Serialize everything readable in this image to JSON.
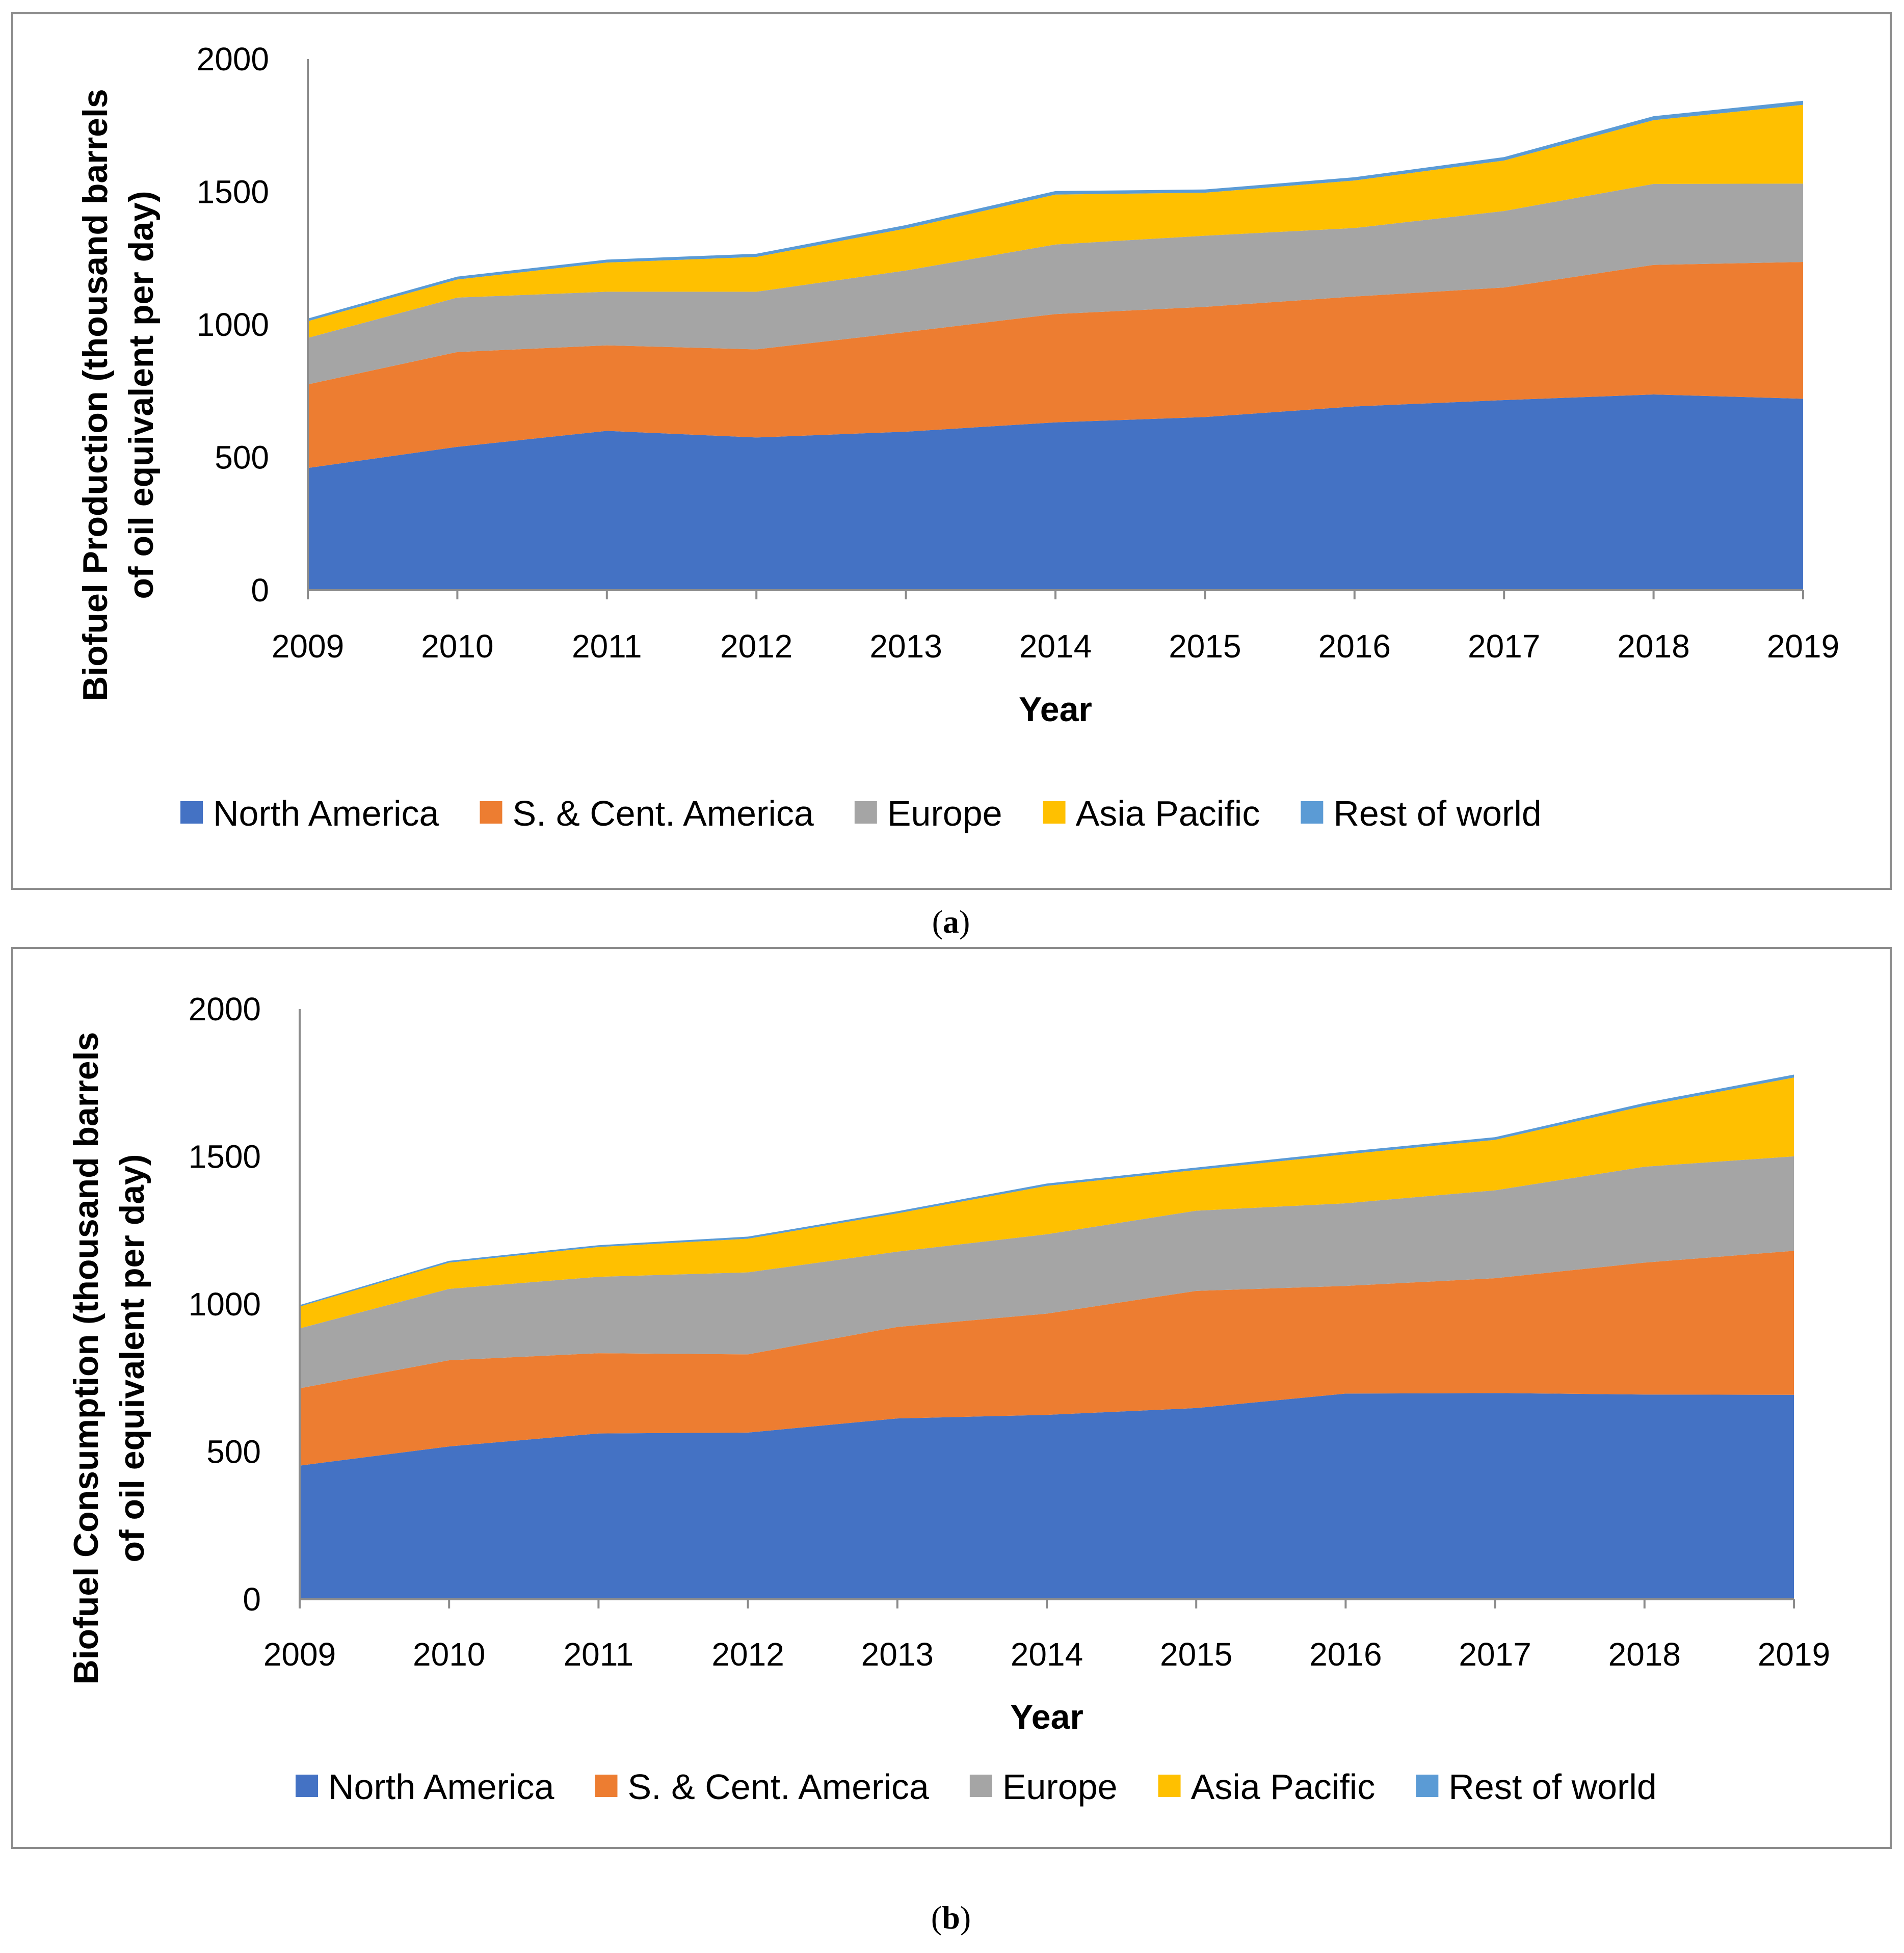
{
  "figure_labels": [
    {
      "letter": "a",
      "open": "(",
      "close": ")"
    },
    {
      "letter": "b",
      "open": "(",
      "close": ")"
    }
  ],
  "colors": {
    "North America": "#4472C4",
    "S. & Cent. America": "#ED7D31",
    "Europe": "#A5A5A5",
    "Asia Pacific": "#FFC000",
    "Rest of world": "#5B9BD5"
  },
  "chart_data": [
    {
      "type": "area",
      "stacked": true,
      "title": "",
      "xlabel": "Year",
      "ylabel_lines": [
        "Biofuel Production  (thousand barrels",
        "of oil equivalent per day)"
      ],
      "ylim": [
        0,
        2000
      ],
      "yticks": [
        0,
        500,
        1000,
        1500,
        2000
      ],
      "grid": false,
      "legend": "bottom",
      "categories": [
        "2009",
        "2010",
        "2011",
        "2012",
        "2013",
        "2014",
        "2015",
        "2016",
        "2017",
        "2018",
        "2019"
      ],
      "series": [
        {
          "name": "North America",
          "values": [
            460,
            540,
            600,
            575,
            597,
            632,
            652,
            692,
            716,
            737,
            721
          ]
        },
        {
          "name": "S. & Cent. America",
          "values": [
            315,
            357,
            322,
            332,
            375,
            408,
            415,
            414,
            424,
            488,
            515
          ]
        },
        {
          "name": "Europe",
          "values": [
            175,
            205,
            202,
            217,
            232,
            262,
            268,
            258,
            288,
            305,
            295
          ]
        },
        {
          "name": "Asia Pacific",
          "values": [
            63,
            68,
            110,
            131,
            158,
            188,
            162,
            179,
            190,
            240,
            297
          ]
        },
        {
          "name": "Rest of world",
          "values": [
            10,
            11,
            11,
            12,
            13,
            13,
            12,
            12,
            13,
            15,
            15
          ]
        }
      ]
    },
    {
      "type": "area",
      "stacked": true,
      "title": "",
      "xlabel": "Year",
      "ylabel_lines": [
        "Biofuel Consumption (thousand barrels",
        "of oil equivalent per day)"
      ],
      "ylim": [
        0,
        2000
      ],
      "yticks": [
        0,
        500,
        1000,
        1500,
        2000
      ],
      "grid": false,
      "legend": "bottom",
      "categories": [
        "2009",
        "2010",
        "2011",
        "2012",
        "2013",
        "2014",
        "2015",
        "2016",
        "2017",
        "2018",
        "2019"
      ],
      "series": [
        {
          "name": "North America",
          "values": [
            453,
            518,
            562,
            565,
            613,
            625,
            648,
            697,
            699,
            694,
            693
          ]
        },
        {
          "name": "S. & Cent. America",
          "values": [
            262,
            292,
            272,
            265,
            310,
            343,
            397,
            365,
            389,
            447,
            488
          ]
        },
        {
          "name": "Europe",
          "values": [
            203,
            242,
            259,
            278,
            255,
            269,
            272,
            280,
            298,
            325,
            320
          ]
        },
        {
          "name": "Asia Pacific",
          "values": [
            74,
            89,
            101,
            114,
            130,
            164,
            138,
            166,
            171,
            206,
            267
          ]
        },
        {
          "name": "Rest of world",
          "values": [
            5,
            6,
            6,
            7,
            7,
            8,
            8,
            9,
            9,
            10,
            10
          ]
        }
      ]
    }
  ]
}
